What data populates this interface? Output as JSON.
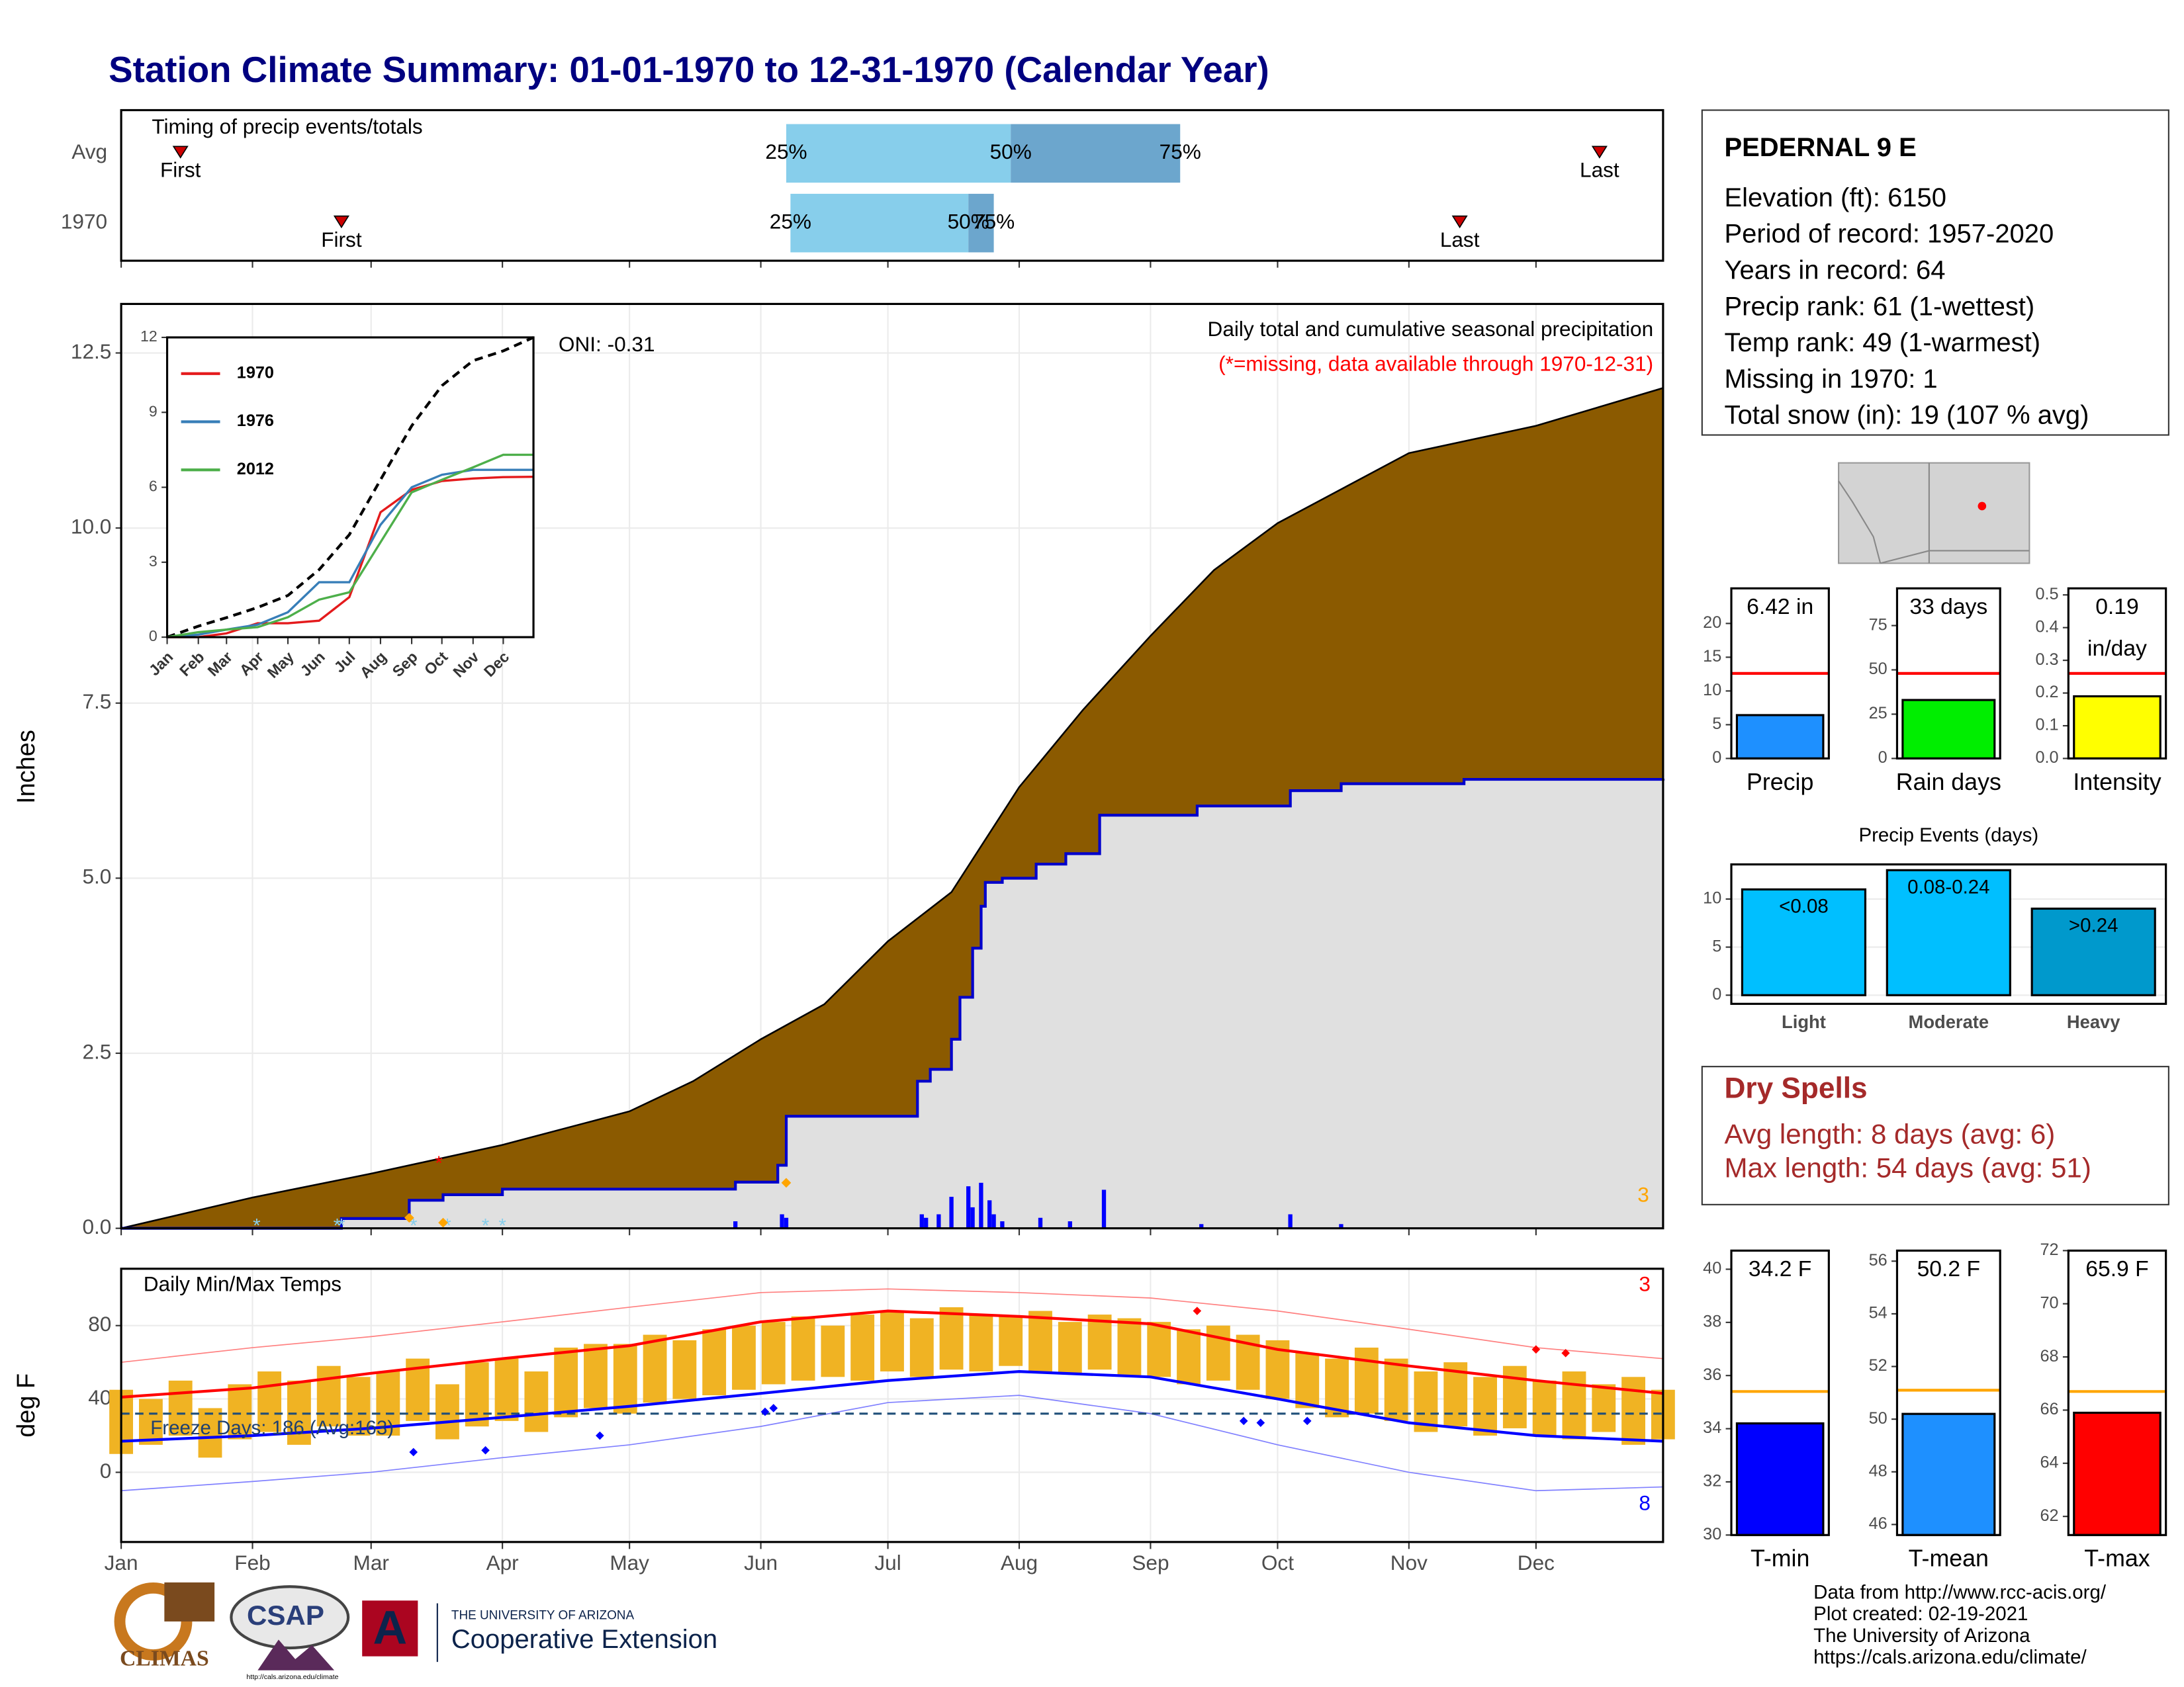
{
  "title": "Station Climate Summary: 01-01-1970 to 12-31-1970 (Calendar Year)",
  "station": {
    "name": "PEDERNAL 9 E",
    "lines": [
      "Elevation (ft): 6150",
      "Period of record: 1957-2020",
      "Years in record: 64",
      "Precip rank: 61 (1-wettest)",
      "Temp rank: 49 (1-warmest)",
      "Missing in 1970: 1",
      "Total snow (in): 19 (107 % avg)"
    ]
  },
  "dry_spells": {
    "title": "Dry Spells",
    "lines": [
      "Avg length: 8 days (avg: 6)",
      "Max length: 54 days (avg: 51)"
    ]
  },
  "credits": [
    "Data from http://www.rcc-acis.org/",
    "Plot created: 02-19-2021",
    "The University of Arizona",
    "https://cals.arizona.edu/climate/"
  ],
  "logos": {
    "climas": "CLIMAS",
    "csap": "CSAP",
    "csap_url": "http://cals.arizona.edu/climate",
    "ua": "THE UNIVERSITY OF ARIZONA",
    "extension": "Cooperative Extension"
  },
  "chart_data": [
    {
      "type": "timeline",
      "title": "Timing of precip events/totals",
      "xlim": [
        1,
        365
      ],
      "xticks": [
        1,
        32,
        60,
        91,
        121,
        152,
        182,
        213,
        244,
        274,
        305,
        335
      ],
      "rows": [
        {
          "name": "Avg",
          "first": 15,
          "q25": 158,
          "q50": 211,
          "q75": 251,
          "last": 350
        },
        {
          "name": "1970",
          "first": 53,
          "q25": 159,
          "q50": 201,
          "q75": 207,
          "last": 317
        }
      ],
      "marker_labels": {
        "first": "First",
        "last": "Last",
        "q25": "25%",
        "q50": "50%",
        "q75": "75%"
      },
      "colors": [
        "#87ceeb",
        "#6ca6cd"
      ],
      "marker_color": "#cc0000"
    },
    {
      "type": "area",
      "ylabel": "Inches",
      "annotation": "ONI: -0.31",
      "subtitle": "Daily total and cumulative seasonal precipitation",
      "note": "(*=missing, data available through 1970-12-31)",
      "missing_count": 3,
      "xlim": [
        1,
        365
      ],
      "ylim": [
        0,
        13.2
      ],
      "xticks": [
        1,
        32,
        60,
        91,
        121,
        152,
        182,
        213,
        244,
        274,
        305,
        335
      ],
      "yticks": [
        {
          "value": 0,
          "label": "0.0"
        },
        2.5,
        {
          "value": 5,
          "label": "5.0"
        },
        7.5,
        {
          "value": 10,
          "label": "10.0"
        },
        12.5
      ],
      "grid": true,
      "series": [
        {
          "color": "#8b5a00",
          "x": [
            1,
            32,
            60,
            91,
            121,
            136,
            152,
            167,
            182,
            197,
            213,
            228,
            244,
            259,
            274,
            305,
            335,
            365
          ],
          "values": [
            0,
            0.44,
            0.78,
            1.19,
            1.67,
            2.1,
            2.7,
            3.2,
            4.1,
            4.8,
            6.3,
            7.4,
            8.46,
            9.4,
            10.07,
            11.07,
            11.46,
            12.0
          ]
        },
        {
          "color": "#0000cc",
          "fill": "#e0e0e0",
          "step": true,
          "x": [
            1,
            53,
            69,
            77,
            91,
            146,
            156,
            158,
            189,
            192,
            197,
            199,
            202,
            204,
            205,
            209,
            217,
            224,
            232,
            255,
            277,
            289,
            318,
            365
          ],
          "values": [
            0,
            0.14,
            0.4,
            0.48,
            0.56,
            0.66,
            0.9,
            1.6,
            2.1,
            2.27,
            2.7,
            3.3,
            4.0,
            4.6,
            4.94,
            5.0,
            5.2,
            5.35,
            5.9,
            6.03,
            6.25,
            6.35,
            6.41,
            6.42
          ]
        }
      ],
      "daily": {
        "color": "#0000ff",
        "x": [
          146,
          157,
          158,
          190,
          191,
          194,
          197,
          201,
          202,
          204,
          206,
          207,
          209,
          218,
          225,
          233,
          256,
          277,
          289
        ],
        "values": [
          0.1,
          0.2,
          0.15,
          0.2,
          0.15,
          0.2,
          0.45,
          0.6,
          0.3,
          0.65,
          0.4,
          0.2,
          0.1,
          0.15,
          0.1,
          0.55,
          0.06,
          0.2,
          0.06
        ]
      },
      "snow": {
        "color": "#87ceeb",
        "x": [
          33,
          52,
          53,
          70,
          78,
          87,
          91
        ]
      },
      "orange_points": {
        "color": "#ffa500",
        "x": [
          69,
          77,
          158
        ],
        "values": [
          0.15,
          0.08,
          0.65
        ]
      },
      "red_points": {
        "color": "#ff0000",
        "x": [
          76
        ],
        "values": [
          0.97
        ]
      }
    },
    {
      "type": "line",
      "xlim": [
        1,
        365
      ],
      "ylim": [
        0,
        12
      ],
      "yticks": [
        0,
        3,
        6,
        9,
        12
      ],
      "legend": "top-left",
      "xticks": [
        {
          "value": 1,
          "label": "Jan"
        },
        {
          "value": 32,
          "label": "Feb"
        },
        {
          "value": 60,
          "label": "Mar"
        },
        {
          "value": 91,
          "label": "Apr"
        },
        {
          "value": 121,
          "label": "May"
        },
        {
          "value": 152,
          "label": "Jun"
        },
        {
          "value": 182,
          "label": "Jul"
        },
        {
          "value": 213,
          "label": "Aug"
        },
        {
          "value": 244,
          "label": "Sep"
        },
        {
          "value": 274,
          "label": "Oct"
        },
        {
          "value": 305,
          "label": "Nov"
        },
        {
          "value": 335,
          "label": "Dec"
        }
      ],
      "x": [
        1,
        32,
        60,
        91,
        121,
        152,
        182,
        213,
        244,
        274,
        305,
        335,
        365
      ],
      "series": [
        {
          "color": "#000000",
          "dash": true,
          "values": [
            0,
            0.44,
            0.78,
            1.19,
            1.67,
            2.7,
            4.1,
            6.3,
            8.46,
            10.07,
            11.07,
            11.46,
            12.0
          ]
        },
        {
          "name": "1970",
          "color": "#e41a1c",
          "values": [
            0,
            0,
            0.15,
            0.56,
            0.56,
            0.66,
            1.6,
            5.0,
            5.9,
            6.25,
            6.35,
            6.41,
            6.42
          ]
        },
        {
          "name": "1976",
          "color": "#377eb8",
          "values": [
            0,
            0.1,
            0.3,
            0.5,
            1.0,
            2.2,
            2.2,
            4.5,
            6.0,
            6.5,
            6.7,
            6.7,
            6.7
          ]
        },
        {
          "name": "2012",
          "color": "#4daf4a",
          "values": [
            0,
            0.2,
            0.3,
            0.4,
            0.8,
            1.5,
            1.8,
            3.8,
            5.8,
            6.3,
            6.8,
            7.3,
            7.3
          ]
        }
      ]
    },
    {
      "type": "temperature",
      "title": "Daily Min/Max Temps",
      "ylabel": "deg F",
      "xlim": [
        1,
        365
      ],
      "ylim": [
        -38,
        111
      ],
      "yticks": [
        0,
        40,
        80
      ],
      "grid": true,
      "xticks": [
        {
          "value": 1,
          "label": "Jan"
        },
        {
          "value": 32,
          "label": "Feb"
        },
        {
          "value": 60,
          "label": "Mar"
        },
        {
          "value": 91,
          "label": "Apr"
        },
        {
          "value": 121,
          "label": "May"
        },
        {
          "value": 152,
          "label": "Jun"
        },
        {
          "value": 182,
          "label": "Jul"
        },
        {
          "value": 213,
          "label": "Aug"
        },
        {
          "value": 244,
          "label": "Sep"
        },
        {
          "value": 274,
          "label": "Oct"
        },
        {
          "value": 305,
          "label": "Nov"
        },
        {
          "value": 335,
          "label": "Dec"
        }
      ],
      "bars": {
        "color": "#f0b323",
        "x": [
          1,
          8,
          15,
          22,
          29,
          36,
          43,
          50,
          57,
          64,
          71,
          78,
          85,
          92,
          99,
          106,
          113,
          120,
          127,
          134,
          141,
          148,
          155,
          162,
          169,
          176,
          183,
          190,
          197,
          204,
          211,
          218,
          225,
          232,
          239,
          246,
          253,
          260,
          267,
          274,
          281,
          288,
          295,
          302,
          309,
          316,
          323,
          330,
          337,
          344,
          351,
          358,
          365
        ],
        "min": [
          10,
          15,
          20,
          8,
          18,
          22,
          15,
          25,
          20,
          20,
          28,
          18,
          25,
          28,
          22,
          30,
          35,
          32,
          38,
          40,
          42,
          45,
          48,
          50,
          52,
          50,
          55,
          52,
          56,
          55,
          58,
          55,
          54,
          56,
          53,
          52,
          48,
          50,
          45,
          40,
          35,
          30,
          32,
          28,
          22,
          25,
          20,
          24,
          20,
          18,
          22,
          15,
          18
        ],
        "max": [
          45,
          40,
          50,
          35,
          48,
          55,
          50,
          58,
          52,
          55,
          62,
          48,
          60,
          62,
          55,
          68,
          70,
          70,
          75,
          72,
          78,
          80,
          82,
          85,
          80,
          86,
          88,
          84,
          90,
          86,
          85,
          88,
          82,
          86,
          84,
          82,
          78,
          80,
          75,
          72,
          65,
          62,
          68,
          62,
          55,
          60,
          52,
          58,
          50,
          55,
          48,
          52,
          45
        ]
      },
      "lines": [
        {
          "color": "#ff8080",
          "width": 0.8,
          "x": [
            1,
            32,
            60,
            91,
            121,
            152,
            182,
            213,
            244,
            274,
            305,
            335,
            365
          ],
          "values": [
            60,
            68,
            74,
            82,
            90,
            98,
            100,
            98,
            95,
            88,
            78,
            68,
            62
          ]
        },
        {
          "color": "#8080ff",
          "width": 0.8,
          "x": [
            1,
            32,
            60,
            91,
            121,
            152,
            182,
            213,
            244,
            274,
            305,
            335,
            365
          ],
          "values": [
            -10,
            -5,
            0,
            8,
            15,
            25,
            38,
            42,
            32,
            15,
            0,
            -10,
            -8
          ]
        },
        {
          "color": "#ff0000",
          "width": 2,
          "x": [
            1,
            32,
            60,
            91,
            121,
            152,
            182,
            213,
            244,
            274,
            305,
            335,
            365
          ],
          "values": [
            41,
            46,
            54,
            62,
            69,
            82,
            88,
            85,
            81,
            67,
            58,
            50,
            43
          ]
        },
        {
          "color": "#0000ff",
          "width": 2,
          "x": [
            1,
            32,
            60,
            91,
            121,
            152,
            182,
            213,
            244,
            274,
            305,
            335,
            365
          ],
          "values": [
            17,
            20,
            24,
            30,
            36,
            43,
            50,
            55,
            52,
            40,
            27,
            20,
            17
          ]
        }
      ],
      "freeze_line": 32,
      "freeze_text": "Freeze Days: 186 (Avg:163)",
      "high_markers": {
        "color": "#ff0000",
        "x": [
          255,
          335,
          342
        ],
        "values": [
          88,
          67,
          65
        ]
      },
      "low_markers": {
        "color": "#0000ff",
        "x": [
          70,
          87,
          114,
          153,
          155,
          266,
          270,
          281
        ],
        "values": [
          11,
          12,
          20,
          33,
          35,
          28,
          27,
          28
        ]
      },
      "max_missing": 3,
      "min_missing": 8
    },
    {
      "type": "bar",
      "categories": [
        "Precip"
      ],
      "values": [
        6.42
      ],
      "value_labels": [
        "6.42 in"
      ],
      "color": "#1e90ff",
      "avg": 12.6,
      "avg_color": "#ff0000",
      "ylim": [
        0,
        25.2
      ],
      "yticks": [
        0,
        5,
        10,
        15,
        20
      ]
    },
    {
      "type": "bar",
      "categories": [
        "Rain days"
      ],
      "values": [
        33
      ],
      "value_labels": [
        "33 days"
      ],
      "color": "#00ee00",
      "avg": 48,
      "avg_color": "#ff0000",
      "ylim": [
        0,
        96
      ],
      "yticks": [
        0,
        25,
        50,
        75
      ]
    },
    {
      "type": "bar",
      "categories": [
        "Intensity"
      ],
      "values": [
        0.19
      ],
      "unit": "in/day",
      "color": "#ffff00",
      "avg": 0.26,
      "avg_color": "#ff0000",
      "ylim": [
        0,
        0.52
      ],
      "yticks": [
        {
          "value": 0,
          "label": "0.0"
        },
        0.1,
        0.2,
        0.3,
        0.4,
        0.5
      ]
    },
    {
      "type": "bar",
      "title": "Precip Events (days)",
      "categories": [
        "Light",
        "Moderate",
        "Heavy"
      ],
      "values": [
        11,
        13,
        9
      ],
      "bar_labels": [
        "<0.08",
        "0.08-0.24",
        ">0.24"
      ],
      "colors": [
        "#00bfff",
        "#00bfff",
        "#0099cc"
      ],
      "ylim": [
        -0.9,
        13.6
      ],
      "yticks": [
        0,
        5,
        10
      ],
      "grid": true
    },
    {
      "type": "bar",
      "categories": [
        "T-min"
      ],
      "values": [
        34.2
      ],
      "value_labels": [
        "34.2 F"
      ],
      "color": "#0000ff",
      "avg": 35.4,
      "avg_color": "#ffa500",
      "ylim": [
        30,
        40.7
      ],
      "yticks": [
        30,
        32,
        34,
        36,
        38,
        40
      ]
    },
    {
      "type": "bar",
      "categories": [
        "T-mean"
      ],
      "values": [
        50.2
      ],
      "value_labels": [
        "50.2 F"
      ],
      "color": "#1e90ff",
      "avg": 51.1,
      "avg_color": "#ffa500",
      "ylim": [
        45.6,
        56.4
      ],
      "yticks": [
        46,
        48,
        50,
        52,
        54,
        56
      ]
    },
    {
      "type": "bar",
      "categories": [
        "T-max"
      ],
      "values": [
        65.9
      ],
      "value_labels": [
        "65.9 F"
      ],
      "color": "#ff0000",
      "avg": 66.7,
      "avg_color": "#ffa500",
      "ylim": [
        61.3,
        72
      ],
      "yticks": [
        62,
        64,
        66,
        68,
        70,
        72
      ]
    }
  ]
}
